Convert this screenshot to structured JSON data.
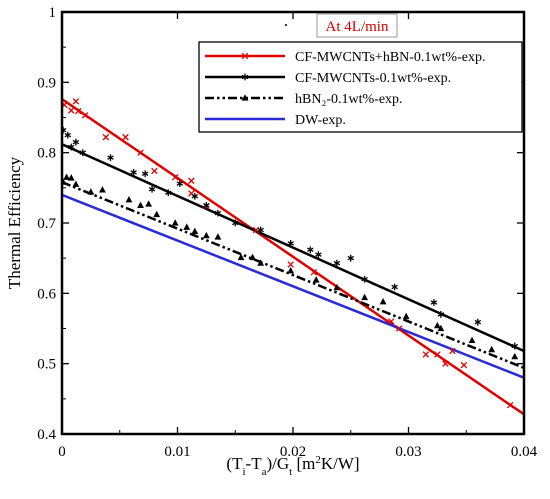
{
  "chart_data": {
    "type": "scatter",
    "title": "",
    "annotation": "At 4L/min",
    "annotation_color": "#d40000",
    "xlabel": {
      "parts": [
        {
          "text": "(T",
          "sub": false
        },
        {
          "text": "i",
          "sub": true
        },
        {
          "text": "-T",
          "sub": false
        },
        {
          "text": "a",
          "sub": true
        },
        {
          "text": ")/G",
          "sub": false
        },
        {
          "text": "t",
          "sub": true
        },
        {
          "text": " [m",
          "sub": false
        },
        {
          "text": "2",
          "sup": true
        },
        {
          "text": "K/W]",
          "sub": false
        }
      ]
    },
    "ylabel": "Thermal Efficiency",
    "xlim": [
      0,
      0.04
    ],
    "ylim": [
      0.4,
      1.0
    ],
    "x_ticks": [
      0,
      0.01,
      0.02,
      0.03,
      0.04
    ],
    "x_tick_labels": [
      "0",
      "0.01",
      "0.02",
      "0.03",
      "0.04"
    ],
    "y_ticks": [
      0.4,
      0.5,
      0.6,
      0.7,
      0.8,
      0.9,
      1.0
    ],
    "y_tick_labels": [
      "0.4",
      "0.5",
      "0.6",
      "0.7",
      "0.8",
      "0.9",
      "1"
    ],
    "grid": false,
    "legend_position": "top-right",
    "series": [
      {
        "name": "CF-MWCNTs+hBN-0.1wt%-exp.",
        "color": "#e00000",
        "marker": "x",
        "line_style": "solid",
        "fit": {
          "x": [
            0,
            0.04
          ],
          "y": [
            0.876,
            0.428
          ]
        },
        "points": [
          [
            0.0002,
            0.868
          ],
          [
            0.0008,
            0.86
          ],
          [
            0.0012,
            0.873
          ],
          [
            0.0014,
            0.859
          ],
          [
            0.002,
            0.853
          ],
          [
            0.0038,
            0.822
          ],
          [
            0.0055,
            0.822
          ],
          [
            0.0068,
            0.8
          ],
          [
            0.008,
            0.774
          ],
          [
            0.0098,
            0.765
          ],
          [
            0.0112,
            0.76
          ],
          [
            0.0112,
            0.742
          ],
          [
            0.0125,
            0.724
          ],
          [
            0.0168,
            0.69
          ],
          [
            0.0198,
            0.641
          ],
          [
            0.0218,
            0.63
          ],
          [
            0.0285,
            0.56
          ],
          [
            0.0292,
            0.55
          ],
          [
            0.0315,
            0.513
          ],
          [
            0.0325,
            0.513
          ],
          [
            0.0332,
            0.5
          ],
          [
            0.0338,
            0.518
          ],
          [
            0.0348,
            0.498
          ],
          [
            0.0388,
            0.441
          ]
        ]
      },
      {
        "name": "CF-MWCNTs-0.1wt%-exp.",
        "color": "#000000",
        "marker": "*",
        "line_style": "solid",
        "fit": {
          "x": [
            0,
            0.04
          ],
          "y": [
            0.812,
            0.518
          ]
        },
        "points": [
          [
            0.0001,
            0.832
          ],
          [
            0.0005,
            0.825
          ],
          [
            0.0008,
            0.808
          ],
          [
            0.0012,
            0.815
          ],
          [
            0.0018,
            0.8
          ],
          [
            0.0042,
            0.793
          ],
          [
            0.0062,
            0.772
          ],
          [
            0.0072,
            0.77
          ],
          [
            0.0078,
            0.748
          ],
          [
            0.0092,
            0.743
          ],
          [
            0.0102,
            0.756
          ],
          [
            0.0115,
            0.738
          ],
          [
            0.0125,
            0.725
          ],
          [
            0.0135,
            0.714
          ],
          [
            0.015,
            0.7
          ],
          [
            0.0172,
            0.69
          ],
          [
            0.0198,
            0.671
          ],
          [
            0.0215,
            0.662
          ],
          [
            0.0222,
            0.655
          ],
          [
            0.0238,
            0.643
          ],
          [
            0.025,
            0.65
          ],
          [
            0.0262,
            0.62
          ],
          [
            0.0288,
            0.609
          ],
          [
            0.0322,
            0.587
          ],
          [
            0.0328,
            0.57
          ],
          [
            0.036,
            0.559
          ],
          [
            0.0392,
            0.525
          ]
        ]
      },
      {
        "name": "hBN₂-0.1wt%-exp.",
        "color": "#000000",
        "marker": "triangle",
        "line_style": "dashdotdot",
        "fit": {
          "x": [
            0,
            0.04
          ],
          "y": [
            0.758,
            0.494
          ]
        },
        "points": [
          [
            0.0001,
            0.758
          ],
          [
            0.0004,
            0.765
          ],
          [
            0.0008,
            0.764
          ],
          [
            0.0012,
            0.755
          ],
          [
            0.0025,
            0.744
          ],
          [
            0.0035,
            0.747
          ],
          [
            0.0058,
            0.733
          ],
          [
            0.0068,
            0.725
          ],
          [
            0.0075,
            0.727
          ],
          [
            0.0082,
            0.712
          ],
          [
            0.0098,
            0.7
          ],
          [
            0.0108,
            0.694
          ],
          [
            0.0115,
            0.688
          ],
          [
            0.0125,
            0.682
          ],
          [
            0.0135,
            0.68
          ],
          [
            0.0155,
            0.651
          ],
          [
            0.0165,
            0.651
          ],
          [
            0.0172,
            0.643
          ],
          [
            0.0198,
            0.632
          ],
          [
            0.022,
            0.619
          ],
          [
            0.0238,
            0.608
          ],
          [
            0.0262,
            0.594
          ],
          [
            0.0278,
            0.588
          ],
          [
            0.0298,
            0.567
          ],
          [
            0.0325,
            0.554
          ],
          [
            0.0328,
            0.55
          ],
          [
            0.0355,
            0.533
          ],
          [
            0.0372,
            0.52
          ],
          [
            0.0392,
            0.51
          ]
        ]
      },
      {
        "name": "DW-exp.",
        "color": "#2a2ad8",
        "marker": "none",
        "line_style": "solid",
        "fit": {
          "x": [
            0,
            0.04
          ],
          "y": [
            0.74,
            0.48
          ]
        },
        "points": []
      }
    ]
  }
}
